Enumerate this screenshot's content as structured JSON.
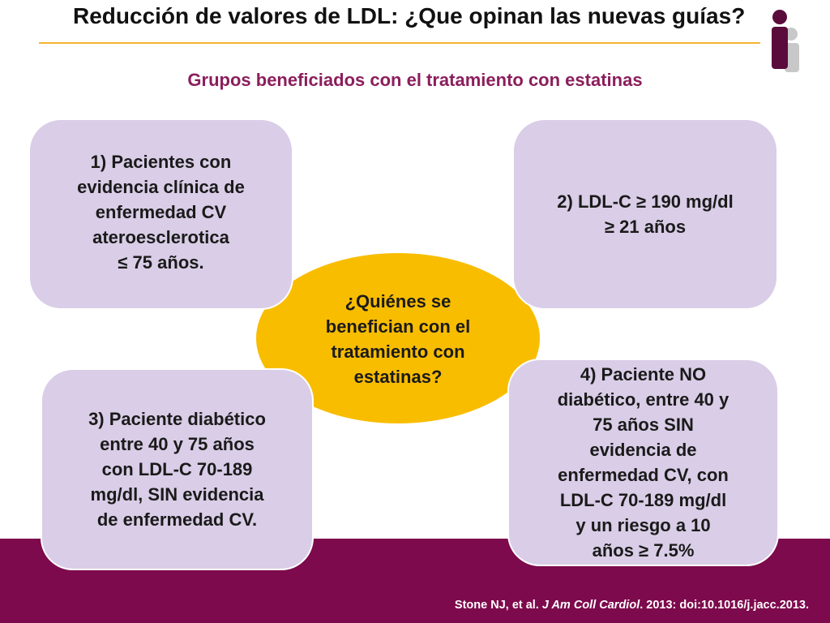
{
  "header": {
    "title": "Reducción de valores de LDL: ¿Que opinan las nuevas guías?",
    "subtitle": "Grupos beneficiados con el tratamiento con estatinas"
  },
  "center": {
    "question": "¿Quiénes se\nbenefician con el\ntratamiento con\nestatinas?"
  },
  "groups": [
    {
      "text": "1)  Pacientes con\nevidencia clínica de\nenfermedad CV\nateroesclerotica\n≤ 75 años."
    },
    {
      "text": "2) LDL-C ≥ 190 mg/dl\n≥ 21 años"
    },
    {
      "text": "3) Paciente diabético\nentre 40 y 75 años\ncon LDL-C 70-189\nmg/dl, SIN evidencia\nde enfermedad CV."
    },
    {
      "text": "4) Paciente NO\ndiabético, entre 40 y\n75 años SIN\nevidencia de\nenfermedad CV, con\nLDL-C 70-189 mg/dl\ny un riesgo a 10\naños ≥ 7.5%"
    }
  ],
  "citation": {
    "authors": "Stone NJ, et al.",
    "journal": "J Am Coll Cardiol",
    "details": ". 2013: doi:10.1016/j.jacc.2013."
  },
  "colors": {
    "accent": "#8b1e5c",
    "band": "#7d0a4c",
    "center_fill": "#f9bd00",
    "box_fill": "#d9cde7",
    "rule": "#f5b430"
  },
  "icons": {
    "header_icon": "people-icon"
  }
}
